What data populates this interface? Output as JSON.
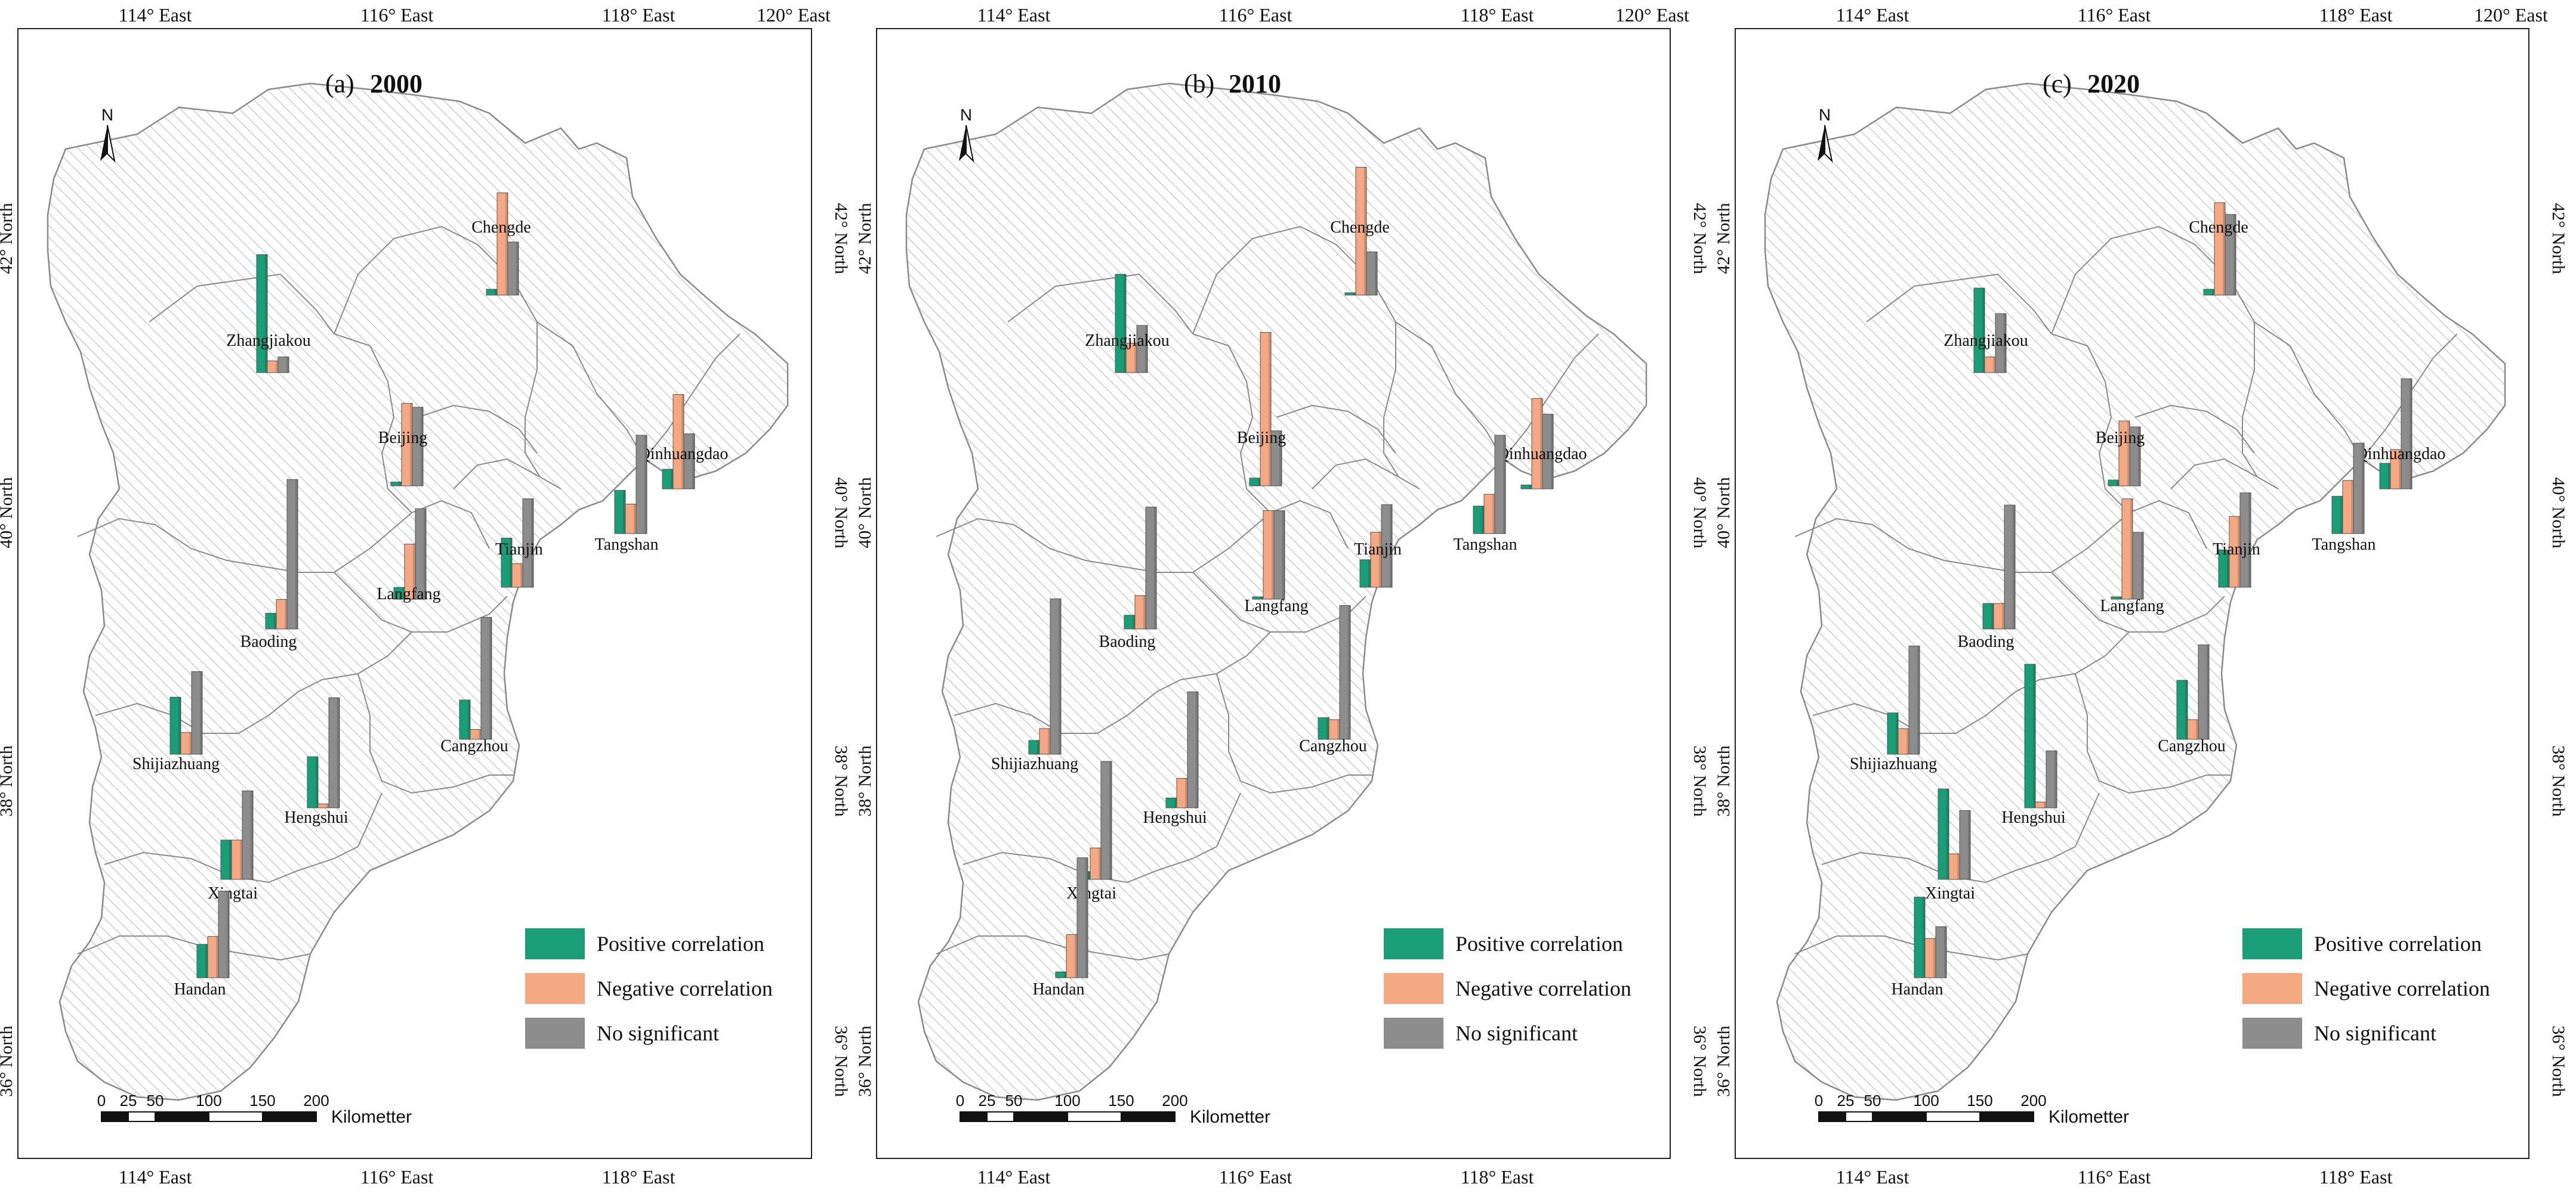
{
  "legend": {
    "positive": "Positive correlation",
    "negative": "Negative correlation",
    "none": "No significant"
  },
  "colors": {
    "positive": "#1a9e78",
    "negative": "#f4a883",
    "none": "#8c8c8c",
    "hatch": "#b9b9b9",
    "outline": "#8a8a8a"
  },
  "axes": {
    "lon_labels": [
      "114° East",
      "116° East",
      "118° East",
      "120° East"
    ],
    "lat_labels": [
      "42° North",
      "40° North",
      "38° North",
      "36° North"
    ]
  },
  "scale_bar": {
    "ticks": [
      "0",
      "25",
      "50",
      "100",
      "150",
      "200"
    ],
    "unit": "Kilometter"
  },
  "north_arrow": {
    "label": "N"
  },
  "panels": [
    {
      "letter": "(a)",
      "year": "2000",
      "cities": [
        {
          "name": "Zhangjiakou",
          "positive": 6,
          "negative": 0.6,
          "none": 0.8
        },
        {
          "name": "Chengde",
          "positive": 0.3,
          "negative": 5.2,
          "none": 2.7
        },
        {
          "name": "Beijing",
          "positive": 0.2,
          "negative": 4.2,
          "none": 4.0
        },
        {
          "name": "Qinhuangdao",
          "positive": 1.0,
          "negative": 4.8,
          "none": 2.8
        },
        {
          "name": "Tangshan",
          "positive": 2.2,
          "negative": 1.5,
          "none": 5.0
        },
        {
          "name": "Tianjin",
          "positive": 2.5,
          "negative": 1.2,
          "none": 4.5
        },
        {
          "name": "Langfang",
          "positive": 0.6,
          "negative": 2.8,
          "none": 4.6
        },
        {
          "name": "Baoding",
          "positive": 0.8,
          "negative": 1.5,
          "none": 7.6
        },
        {
          "name": "Cangzhou",
          "positive": 2.0,
          "negative": 0.5,
          "none": 6.2
        },
        {
          "name": "Shijiazhuang",
          "positive": 2.9,
          "negative": 1.1,
          "none": 4.2
        },
        {
          "name": "Hengshui",
          "positive": 2.6,
          "negative": 0.2,
          "none": 5.6
        },
        {
          "name": "Xingtai",
          "positive": 2.0,
          "negative": 2.0,
          "none": 4.5
        },
        {
          "name": "Handan",
          "positive": 1.7,
          "negative": 2.1,
          "none": 4.4
        }
      ]
    },
    {
      "letter": "(b)",
      "year": "2010",
      "cities": [
        {
          "name": "Zhangjiakou",
          "positive": 5.0,
          "negative": 1.5,
          "none": 2.4
        },
        {
          "name": "Chengde",
          "positive": 0.1,
          "negative": 6.5,
          "none": 2.2
        },
        {
          "name": "Beijing",
          "positive": 0.4,
          "negative": 7.8,
          "none": 2.8
        },
        {
          "name": "Qinhuangdao",
          "positive": 0.2,
          "negative": 4.6,
          "none": 3.8
        },
        {
          "name": "Tangshan",
          "positive": 1.4,
          "negative": 2.0,
          "none": 5.0
        },
        {
          "name": "Tianjin",
          "positive": 1.4,
          "negative": 2.8,
          "none": 4.2
        },
        {
          "name": "Langfang",
          "positive": 0.1,
          "negative": 4.5,
          "none": 4.5
        },
        {
          "name": "Baoding",
          "positive": 0.7,
          "negative": 1.7,
          "none": 6.2
        },
        {
          "name": "Cangzhou",
          "positive": 1.1,
          "negative": 1.0,
          "none": 6.8
        },
        {
          "name": "Shijiazhuang",
          "positive": 0.7,
          "negative": 1.3,
          "none": 7.9
        },
        {
          "name": "Hengshui",
          "positive": 0.5,
          "negative": 1.5,
          "none": 5.9
        },
        {
          "name": "Xingtai",
          "positive": 0.4,
          "negative": 1.6,
          "none": 6.0
        },
        {
          "name": "Handan",
          "positive": 0.3,
          "negative": 2.2,
          "none": 6.1
        }
      ]
    },
    {
      "letter": "(c)",
      "year": "2020",
      "cities": [
        {
          "name": "Zhangjiakou",
          "positive": 4.3,
          "negative": 0.8,
          "none": 3.0
        },
        {
          "name": "Chengde",
          "positive": 0.3,
          "negative": 4.7,
          "none": 4.1
        },
        {
          "name": "Beijing",
          "positive": 0.3,
          "negative": 3.3,
          "none": 3.0
        },
        {
          "name": "Qinhuangdao",
          "positive": 1.3,
          "negative": 2.0,
          "none": 5.6
        },
        {
          "name": "Tangshan",
          "positive": 1.9,
          "negative": 2.7,
          "none": 4.6
        },
        {
          "name": "Tianjin",
          "positive": 1.9,
          "negative": 3.6,
          "none": 4.8
        },
        {
          "name": "Langfang",
          "positive": 0.1,
          "negative": 5.1,
          "none": 3.4
        },
        {
          "name": "Baoding",
          "positive": 1.3,
          "negative": 1.3,
          "none": 6.3
        },
        {
          "name": "Cangzhou",
          "positive": 3.0,
          "negative": 1.0,
          "none": 4.8
        },
        {
          "name": "Shijiazhuang",
          "positive": 2.1,
          "negative": 1.3,
          "none": 5.5
        },
        {
          "name": "Hengshui",
          "positive": 7.3,
          "negative": 0.3,
          "none": 2.9
        },
        {
          "name": "Xingtai",
          "positive": 4.6,
          "negative": 1.3,
          "none": 3.5
        },
        {
          "name": "Handan",
          "positive": 4.1,
          "negative": 2.0,
          "none": 2.6
        }
      ]
    }
  ]
}
